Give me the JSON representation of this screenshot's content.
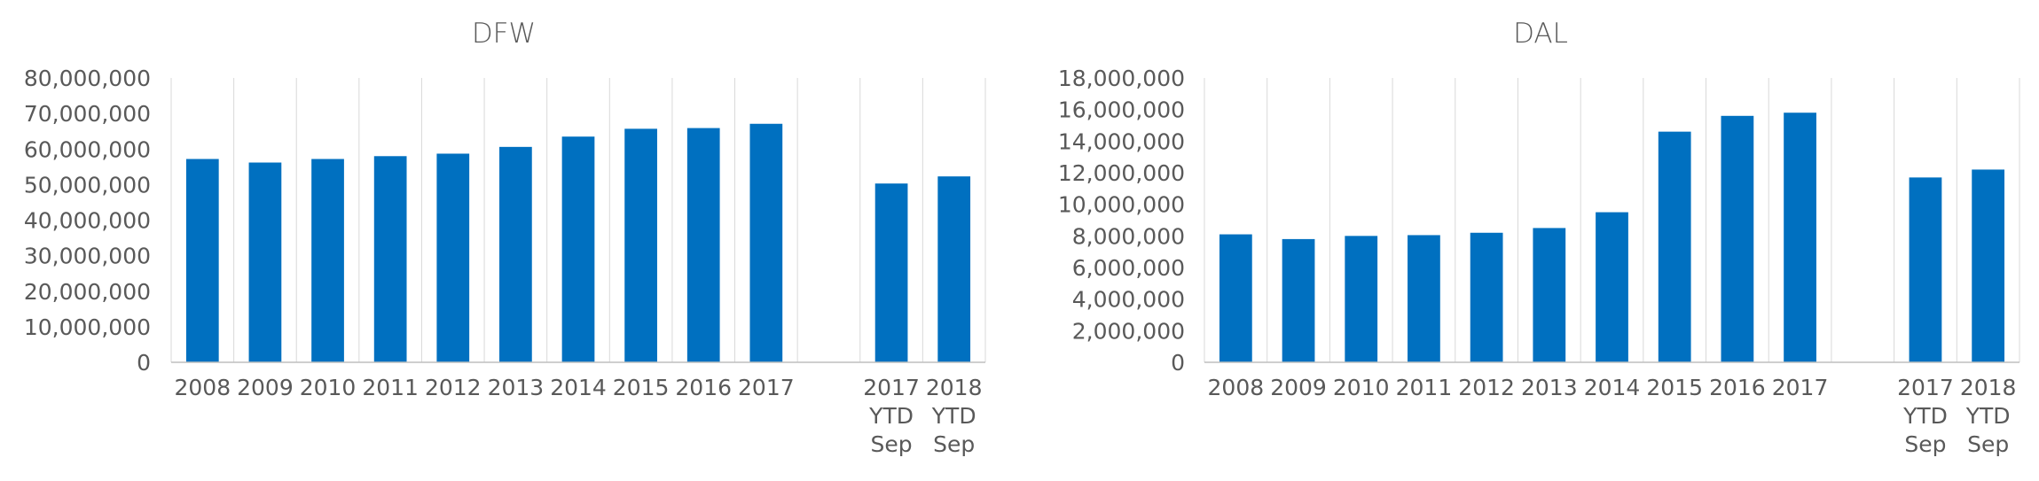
{
  "chart_data": [
    {
      "type": "bar",
      "title": "DFW",
      "categories": [
        "2008",
        "2009",
        "2010",
        "2011",
        "2012",
        "2013",
        "2014",
        "2015",
        "2016",
        "2017",
        "",
        "2017 YTD Sep",
        "2018 YTD Sep"
      ],
      "values": [
        57200000,
        56200000,
        57200000,
        58000000,
        58700000,
        60600000,
        63500000,
        65700000,
        65900000,
        67100000,
        null,
        50300000,
        52300000
      ],
      "ylim": [
        0,
        80000000
      ],
      "yticks": [
        0,
        10000000,
        20000000,
        30000000,
        40000000,
        50000000,
        60000000,
        70000000,
        80000000
      ],
      "ytick_labels": [
        "0",
        "10,000,000",
        "20,000,000",
        "30,000,000",
        "40,000,000",
        "50,000,000",
        "60,000,000",
        "70,000,000",
        "80,000,000"
      ],
      "xlabel": "",
      "ylabel": "",
      "grid": "vertical",
      "color": "#0070c0"
    },
    {
      "type": "bar",
      "title": "DAL",
      "categories": [
        "2008",
        "2009",
        "2010",
        "2011",
        "2012",
        "2013",
        "2014",
        "2015",
        "2016",
        "2017",
        "",
        "2017 YTD Sep",
        "2018 YTD Sep"
      ],
      "values": [
        8100000,
        7800000,
        8000000,
        8050000,
        8200000,
        8500000,
        9500000,
        14600000,
        15600000,
        15800000,
        null,
        11700000,
        12200000
      ],
      "ylim": [
        0,
        18000000
      ],
      "yticks": [
        0,
        2000000,
        4000000,
        6000000,
        8000000,
        10000000,
        12000000,
        14000000,
        16000000,
        18000000
      ],
      "ytick_labels": [
        "0",
        "2,000,000",
        "4,000,000",
        "6,000,000",
        "8,000,000",
        "10,000,000",
        "12,000,000",
        "14,000,000",
        "16,000,000",
        "18,000,000"
      ],
      "xlabel": "",
      "ylabel": "",
      "grid": "vertical",
      "color": "#0070c0"
    }
  ]
}
